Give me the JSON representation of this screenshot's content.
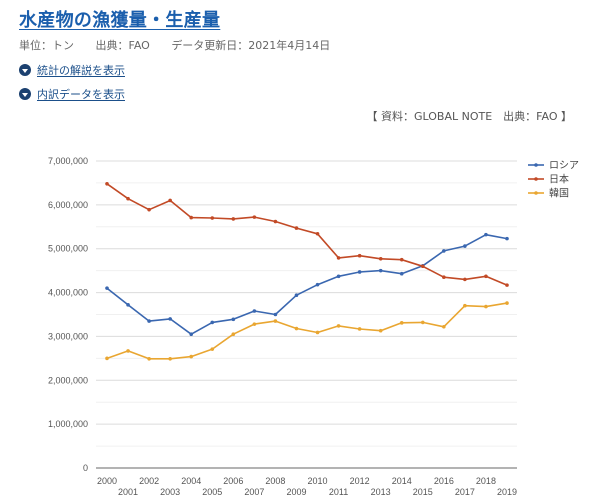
{
  "header": {
    "title": "水産物の漁獲量・生産量",
    "unit": "単位：トン",
    "source": "出典：FAO",
    "updated": "データ更新日：2021年4月14日"
  },
  "toggles": [
    {
      "label": "統計の解説を表示",
      "icon": "caret-down-circle-icon"
    },
    {
      "label": "内訳データを表示",
      "icon": "caret-down-circle-icon"
    }
  ],
  "chart_source": "【 資料：GLOBAL NOTE　出典：FAO 】",
  "chart_data": {
    "type": "line",
    "title": "",
    "xlabel": "",
    "ylabel": "",
    "ylim": [
      0,
      7000000
    ],
    "yticks": [
      0,
      1000000,
      2000000,
      3000000,
      4000000,
      5000000,
      6000000,
      7000000
    ],
    "ytick_labels": [
      "0",
      "1,000,000",
      "2,000,000",
      "3,000,000",
      "4,000,000",
      "5,000,000",
      "6,000,000",
      "7,000,000"
    ],
    "grid": true,
    "legend_position": "right",
    "x": [
      "2000",
      "2001",
      "2002",
      "2003",
      "2004",
      "2005",
      "2006",
      "2007",
      "2008",
      "2009",
      "2010",
      "2011",
      "2012",
      "2013",
      "2014",
      "2015",
      "2016",
      "2017",
      "2018",
      "2019"
    ],
    "series": [
      {
        "name": "ロシア",
        "color": "#3a67b0",
        "values": [
          4100000,
          3720000,
          3350000,
          3400000,
          3050000,
          3320000,
          3390000,
          3580000,
          3500000,
          3940000,
          4180000,
          4370000,
          4470000,
          4500000,
          4430000,
          4610000,
          4950000,
          5060000,
          5320000,
          5230000
        ]
      },
      {
        "name": "日本",
        "color": "#c24a26",
        "values": [
          6480000,
          6140000,
          5890000,
          6100000,
          5710000,
          5700000,
          5680000,
          5720000,
          5620000,
          5470000,
          5340000,
          4790000,
          4840000,
          4770000,
          4750000,
          4600000,
          4350000,
          4300000,
          4370000,
          4170000
        ]
      },
      {
        "name": "韓国",
        "color": "#e9a631",
        "values": [
          2500000,
          2670000,
          2490000,
          2490000,
          2540000,
          2710000,
          3050000,
          3280000,
          3350000,
          3180000,
          3090000,
          3240000,
          3170000,
          3130000,
          3310000,
          3320000,
          3220000,
          3700000,
          3680000,
          3760000
        ]
      }
    ]
  }
}
